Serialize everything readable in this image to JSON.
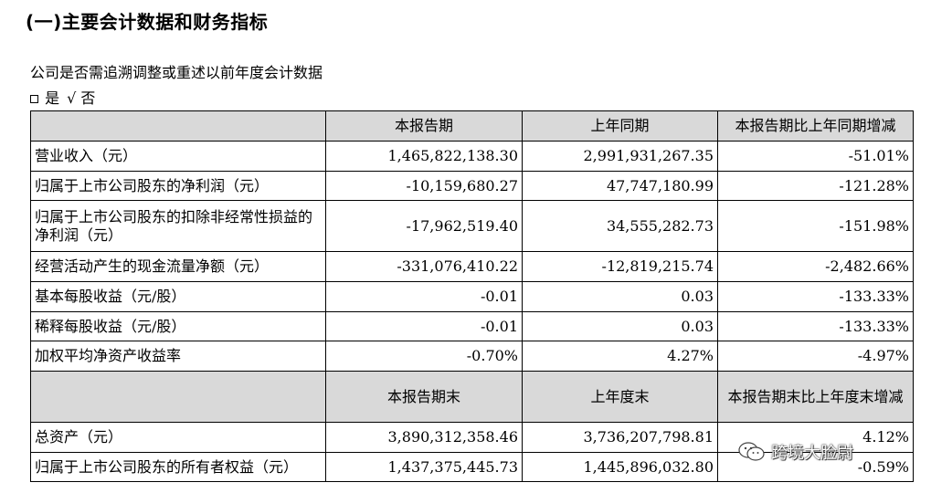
{
  "heading": "(一)主要会计数据和财务指标",
  "question": "公司是否需追溯调整或重述以前年度会计数据",
  "options": {
    "yes": "是",
    "check": "√",
    "no": "否"
  },
  "table": {
    "header1": [
      "",
      "本报告期",
      "上年同期",
      "本报告期比上年同期增减"
    ],
    "rows1": [
      [
        "营业收入（元）",
        "1,465,822,138.30",
        "2,991,931,267.35",
        "-51.01%"
      ],
      [
        "归属于上市公司股东的净利润（元）",
        "-10,159,680.27",
        "47,747,180.99",
        "-121.28%"
      ],
      [
        "归属于上市公司股东的扣除非经常性损益的净利润（元）",
        "-17,962,519.40",
        "34,555,282.73",
        "-151.98%"
      ],
      [
        "经营活动产生的现金流量净额（元）",
        "-331,076,410.22",
        "-12,819,215.74",
        "-2,482.66%"
      ],
      [
        "基本每股收益（元/股）",
        "-0.01",
        "0.03",
        "-133.33%"
      ],
      [
        "稀释每股收益（元/股）",
        "-0.01",
        "0.03",
        "-133.33%"
      ],
      [
        "加权平均净资产收益率",
        "-0.70%",
        "4.27%",
        "-4.97%"
      ]
    ],
    "header2": [
      "",
      "本报告期末",
      "上年度末",
      "本报告期末比上年度末增减"
    ],
    "rows2": [
      [
        "总资产（元）",
        "3,890,312,358.46",
        "3,736,207,798.81",
        "4.12%"
      ],
      [
        "归属于上市公司股东的所有者权益（元）",
        "1,437,375,445.73",
        "1,445,896,032.80",
        "-0.59%"
      ]
    ]
  },
  "watermark": {
    "icon": "wechat-icon",
    "text": "跨境大脸尉"
  }
}
